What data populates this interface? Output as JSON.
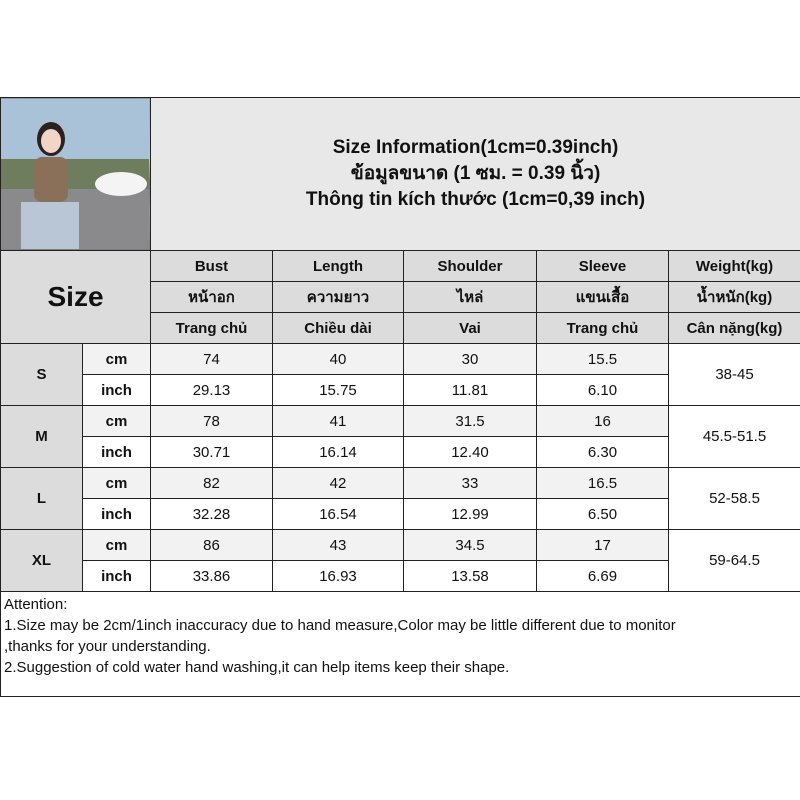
{
  "title": [
    "Size Information(1cm=0.39inch)",
    "ข้อมูลขนาด (1 ซม. = 0.39 นิ้ว)",
    "Thông tin kích thước (1cm=0,39 inch)"
  ],
  "size_label": "Size",
  "headers": [
    [
      "Bust",
      "หน้าอก",
      "Trang chủ"
    ],
    [
      "Length",
      "ความยาว",
      "Chiều dài"
    ],
    [
      "Shoulder",
      "ไหล่",
      "Vai"
    ],
    [
      "Sleeve",
      "แขนเสื้อ",
      "Trang chủ"
    ],
    [
      "Weight(kg)",
      "น้ำหนัก(kg)",
      "Cân nặng(kg)"
    ]
  ],
  "rows": [
    {
      "size": "S",
      "cm_label": "cm",
      "inch_label": "inch",
      "cm": [
        "74",
        "40",
        "30",
        "15.5"
      ],
      "inch": [
        "29.13",
        "15.75",
        "11.81",
        "6.10"
      ],
      "weight": "38-45"
    },
    {
      "size": "M",
      "cm_label": "cm",
      "inch_label": "inch",
      "cm": [
        "78",
        "41",
        "31.5",
        "16"
      ],
      "inch": [
        "30.71",
        "16.14",
        "12.40",
        "6.30"
      ],
      "weight": "45.5-51.5"
    },
    {
      "size": "L",
      "cm_label": "cm",
      "inch_label": "inch",
      "cm": [
        "82",
        "42",
        "33",
        "16.5"
      ],
      "inch": [
        "32.28",
        "16.54",
        "12.99",
        "6.50"
      ],
      "weight": "52-58.5"
    },
    {
      "size": "XL",
      "cm_label": "cm",
      "inch_label": "inch",
      "cm": [
        "86",
        "43",
        "34.5",
        "17"
      ],
      "inch": [
        "33.86",
        "16.93",
        "13.58",
        "6.69"
      ],
      "weight": "59-64.5"
    }
  ],
  "attention": [
    "Attention:",
    "1.Size may be 2cm/1inch inaccuracy due to hand measure,Color may be little different due to monitor",
    ",thanks for your understanding.",
    "2.Suggestion of cold water hand washing,it can help items keep their shape."
  ]
}
